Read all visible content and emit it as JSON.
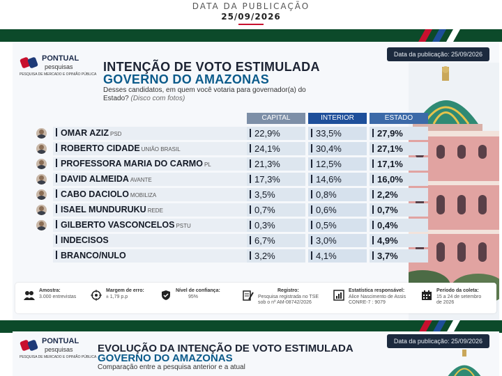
{
  "header": {
    "label": "DATA DA PUBLICAÇÃO",
    "date": "25/09/2026"
  },
  "card1": {
    "pub_date": "Data da publicação: 25/09/2026",
    "logo": {
      "name": "PONTUAL",
      "sub": "pesquisas",
      "tagline": "PESQUISA DE MERCADO E OPINIÃO PÚBLICA"
    },
    "title_line1": "INTENÇÃO DE VOTO ESTIMULADA",
    "title_line2": "GOVERNO DO AMAZONAS",
    "question": "Desses candidatos, em quem você votaria para governador(a) do Estado?",
    "question_note": "(Disco com fotos)",
    "columns": [
      "CAPITAL",
      "INTERIOR",
      "ESTADO"
    ],
    "rows": [
      {
        "name": "OMAR AZIZ",
        "party": "PSD",
        "capital": "22,9%",
        "interior": "33,5%",
        "estado": "27,9%"
      },
      {
        "name": "ROBERTO CIDADE",
        "party": "UNIÃO BRASIL",
        "capital": "24,1%",
        "interior": "30,4%",
        "estado": "27,1%"
      },
      {
        "name": "PROFESSORA MARIA DO CARMO",
        "party": "PL",
        "capital": "21,3%",
        "interior": "12,5%",
        "estado": "17,1%"
      },
      {
        "name": "DAVID ALMEIDA",
        "party": "AVANTE",
        "capital": "17,3%",
        "interior": "14,6%",
        "estado": "16,0%"
      },
      {
        "name": "CABO DACIOLO",
        "party": "MOBILIZA",
        "capital": "3,5%",
        "interior": "0,8%",
        "estado": "2,2%"
      },
      {
        "name": "ISAEL MUNDURUKU",
        "party": "REDE",
        "capital": "0,7%",
        "interior": "0,6%",
        "estado": "0,7%"
      },
      {
        "name": "GILBERTO VASCONCELOS",
        "party": "PSTU",
        "capital": "0,3%",
        "interior": "0,5%",
        "estado": "0,4%"
      },
      {
        "name": "INDECISOS",
        "party": "",
        "capital": "6,7%",
        "interior": "3,0%",
        "estado": "4,9%"
      },
      {
        "name": "BRANCO/NULO",
        "party": "",
        "capital": "3,2%",
        "interior": "4,1%",
        "estado": "3,7%"
      }
    ],
    "footer": {
      "amostra_k": "Amostra:",
      "amostra_v": "3.000 entrevistas",
      "margem_k": "Margem de erro:",
      "margem_v": "± 1,79 p.p",
      "confianca_k": "Nível de confiança:",
      "confianca_v": "95%",
      "registro_k": "Registro:",
      "registro_v1": "Pesquisa registrada no TSE",
      "registro_v2": "sob o nº AM-08742/2026",
      "estat_k": "Estatística responsável:",
      "estat_v1": "Alice Nascimento de Assis",
      "estat_v2": "CONRE-7 : 9079",
      "periodo_k": "Período da coleta:",
      "periodo_v1": "15 a 24 de setembro",
      "periodo_v2": "de 2026"
    }
  },
  "card2": {
    "pub_date": "Data da publicação: 25/09/2026",
    "title_line1": "EVOLUÇÃO DA INTENÇÃO DE VOTO ESTIMULADA",
    "title_line2": "GOVERNO DO AMAZONAS",
    "subtitle": "Comparação entre a pesquisa anterior e a atual"
  },
  "colors": {
    "green_band": "#0c4a2a",
    "accent_red": "#c8102e",
    "navy": "#1c2a3e",
    "blue_title": "#0a5a8a"
  }
}
